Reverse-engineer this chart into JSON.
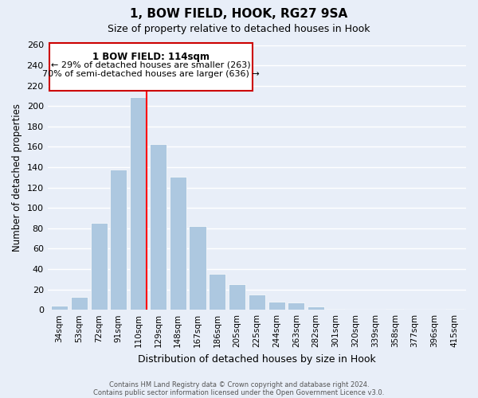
{
  "title": "1, BOW FIELD, HOOK, RG27 9SA",
  "subtitle": "Size of property relative to detached houses in Hook",
  "xlabel": "Distribution of detached houses by size in Hook",
  "ylabel": "Number of detached properties",
  "categories": [
    "34sqm",
    "53sqm",
    "72sqm",
    "91sqm",
    "110sqm",
    "129sqm",
    "148sqm",
    "167sqm",
    "186sqm",
    "205sqm",
    "225sqm",
    "244sqm",
    "263sqm",
    "282sqm",
    "301sqm",
    "320sqm",
    "339sqm",
    "358sqm",
    "377sqm",
    "396sqm",
    "415sqm"
  ],
  "values": [
    4,
    13,
    85,
    138,
    209,
    163,
    131,
    82,
    35,
    25,
    15,
    8,
    7,
    3,
    1,
    0,
    0,
    1,
    0,
    0,
    1
  ],
  "bar_color": "#adc8e0",
  "highlight_bar_index": 4,
  "red_line_index": 4,
  "annotation_title": "1 BOW FIELD: 114sqm",
  "annotation_line1": "← 29% of detached houses are smaller (263)",
  "annotation_line2": "70% of semi-detached houses are larger (636) →",
  "annotation_box_facecolor": "#ffffff",
  "annotation_box_edgecolor": "#cc0000",
  "ylim": [
    0,
    260
  ],
  "yticks": [
    0,
    20,
    40,
    60,
    80,
    100,
    120,
    140,
    160,
    180,
    200,
    220,
    240,
    260
  ],
  "background_color": "#e8eef8",
  "grid_color": "#ffffff",
  "footer1": "Contains HM Land Registry data © Crown copyright and database right 2024.",
  "footer2": "Contains public sector information licensed under the Open Government Licence v3.0."
}
